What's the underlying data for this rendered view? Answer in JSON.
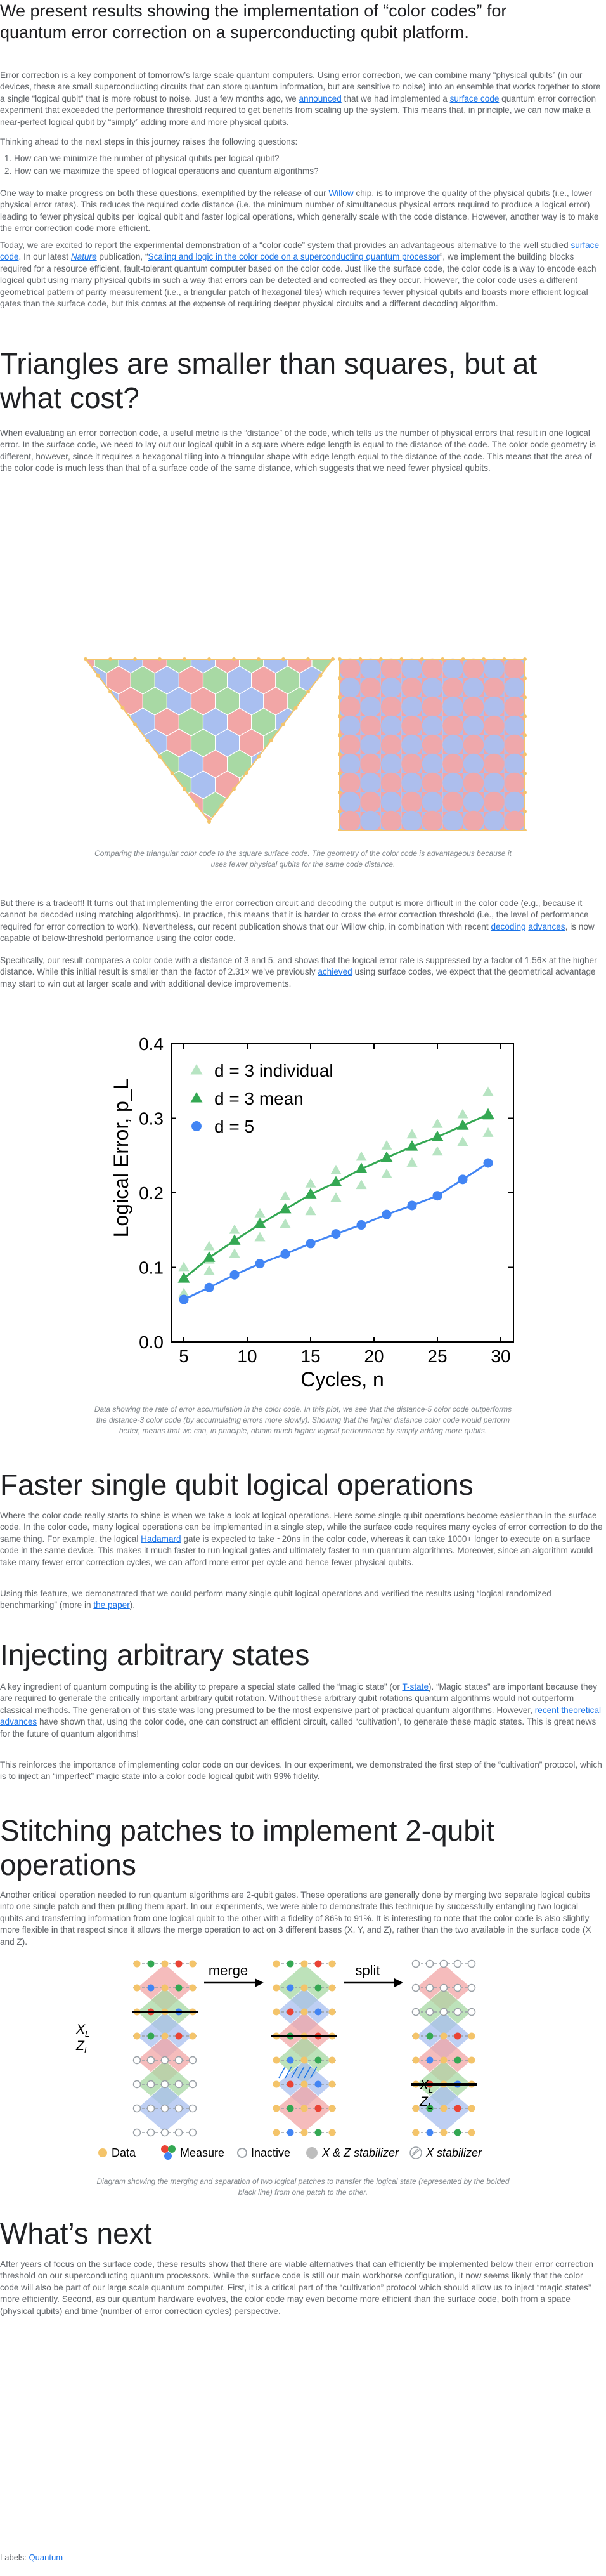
{
  "intro": {
    "lead": "We present results showing the implementation of “color codes” for quantum error correction on a superconducting qubit platform.",
    "p1": {
      "t1": "Error correction is a key component of tomorrow’s large scale quantum computers. Using error correction, we can combine many “physical qubits” (in our devices, these are small superconducting circuits that can store quantum information, but are sensitive to noise) into an ensemble that works together to store a single “logical qubit” that is more robust to noise. Just a few months ago, we ",
      "link1": "announced",
      "t2": " that we had implemented a ",
      "link2": "surface code",
      "t3": " quantum error correction experiment that exceeded the performance threshold required to get benefits from scaling up the system. This means that, in principle, we can now make a near-perfect logical qubit by “simply” adding more and more physical qubits."
    },
    "p2": "Thinking ahead to the next steps in this journey raises the following questions:",
    "questions": [
      "How can we minimize the number of physical qubits per logical qubit?",
      "How can we maximize the speed of logical operations and quantum algorithms?"
    ],
    "p3": {
      "t1": "One way to make progress on both these questions, exemplified by the release of our ",
      "link1": "Willow",
      "t2": " chip, is to improve the quality of the physical qubits (i.e., lower physical error rates). This reduces the required code distance (i.e. the minimum number of simultaneous physical errors required to produce a logical error) leading to fewer physical qubits per logical qubit and faster logical operations, which generally scale with the code distance. However, another way is to make the error correction code more efficient."
    },
    "p4": {
      "t1": "Today, we are excited to report the experimental demonstration of a “color code” system that provides an advantageous alternative to the well studied ",
      "link1": "surface code",
      "t2": ". In our latest ",
      "link2": "Nature",
      "t3": " publication, “",
      "link3": "Scaling and logic in the color code on a superconducting quantum processor",
      "t4": "”, we implement the building blocks required for a resource efficient, fault-tolerant quantum computer based on the color code. Just like the surface code, the color code is a way to encode each logical qubit using many physical qubits in such a way that errors can be detected and corrected as they occur. However, the color code uses a different geometrical pattern of parity measurement (i.e., a triangular patch of hexagonal tiles) which requires fewer physical qubits and boasts more efficient logical gates than the surface code, but this comes at the expense of requiring deeper physical circuits and a different decoding algorithm."
    }
  },
  "triangles": {
    "heading": "Triangles are smaller than squares, but at what cost?",
    "p1": "When evaluating an error correction code, a useful metric is the “distance” of the code, which tells us the number of physical errors that result in one logical error. In the surface code, we need to lay out our logical qubit in a square where edge length is equal to the distance of the code. The color code geometry is different, however, since it requires a hexagonal tiling into a triangular shape with edge length equal to the distance of the code. This means that the area of the color code is much less than that of a surface code of the same distance, which suggests that we need fewer physical qubits.",
    "figure_caption": "Comparing the triangular color code to the square surface code. The geometry of the color code is advantageous because it uses fewer physical qubits for the same code distance.",
    "p2": {
      "t1": "But there is a tradeoff! It turns out that implementing the error correction circuit and decoding the output is more difficult in the color code (e.g., because it cannot be decoded using matching algorithms). In practice, this means that it is harder to cross the error correction threshold (i.e., the level of performance required for error correction to work). Nevertheless, our recent publication shows that our Willow chip, in combination with recent ",
      "link1": "decoding",
      "t2": " ",
      "link2": "advances",
      "t3": ", is now capable of below-threshold performance using the color code."
    },
    "p3": {
      "t1": "Specifically, our result compares a color code with a distance of 3 and 5, and shows that the logical error rate is suppressed by a factor of 1.56× at the higher distance. While this initial result is smaller than the factor of 2.31× we’ve previously ",
      "link1": "achieved",
      "t2": " using surface codes, we expect that the geometrical advantage may start to win out at larger scale and with additional device improvements."
    },
    "chart_caption": "Data showing the rate of error accumulation in the color code. In this plot, we see that the distance-5 color code outperforms the distance-3 color code (by accumulating errors more slowly). Showing that the higher distance color code would perform better, means that we can, in principle, obtain much higher logical performance by simply adding more qubits."
  },
  "chart_data": {
    "type": "scatter",
    "xlabel": "Cycles, n",
    "ylabel": "Logical Error, p_L",
    "xlim": [
      4,
      31
    ],
    "ylim": [
      0,
      0.4
    ],
    "xticks": [
      "5",
      "10",
      "15",
      "20",
      "25",
      "30"
    ],
    "yticks": [
      "0.0",
      "0.1",
      "0.2",
      "0.3",
      "0.4"
    ],
    "legend_position": "top-left",
    "series": [
      {
        "name": "d = 3 individual",
        "color": "#b7e4c2",
        "marker": "triangle",
        "x": [
          5,
          5,
          5,
          7,
          7,
          7,
          9,
          9,
          9,
          11,
          11,
          11,
          13,
          13,
          13,
          15,
          15,
          15,
          17,
          17,
          17,
          19,
          19,
          19,
          21,
          21,
          21,
          23,
          23,
          23,
          25,
          25,
          25,
          27,
          27,
          27,
          29,
          29,
          29
        ],
        "y": [
          0.065,
          0.085,
          0.1,
          0.095,
          0.11,
          0.128,
          0.118,
          0.135,
          0.15,
          0.14,
          0.16,
          0.172,
          0.158,
          0.178,
          0.195,
          0.175,
          0.198,
          0.212,
          0.193,
          0.215,
          0.23,
          0.21,
          0.232,
          0.248,
          0.225,
          0.248,
          0.263,
          0.24,
          0.262,
          0.278,
          0.255,
          0.276,
          0.292,
          0.268,
          0.29,
          0.305,
          0.28,
          0.303,
          0.335
        ]
      },
      {
        "name": "d = 3 mean",
        "color": "#34a853",
        "marker": "triangle",
        "x": [
          5,
          7,
          9,
          11,
          13,
          15,
          17,
          19,
          21,
          23,
          25,
          27,
          29
        ],
        "y": [
          0.085,
          0.113,
          0.136,
          0.158,
          0.178,
          0.198,
          0.214,
          0.232,
          0.247,
          0.262,
          0.275,
          0.29,
          0.305
        ]
      },
      {
        "name": "d = 5",
        "color": "#4285f4",
        "marker": "circle",
        "x": [
          5,
          7,
          9,
          11,
          13,
          15,
          17,
          19,
          21,
          23,
          25,
          27,
          29
        ],
        "y": [
          0.057,
          0.073,
          0.09,
          0.105,
          0.118,
          0.132,
          0.145,
          0.157,
          0.171,
          0.183,
          0.196,
          0.218,
          0.24
        ]
      }
    ]
  },
  "faster": {
    "heading": "Faster single qubit logical operations",
    "p1": {
      "t1": "Where the color code really starts to shine is when we take a look at logical operations. Here some single qubit operations become easier than in the surface code. In the color code, many logical operations can be implemented in a single step, while the surface code requires many cycles of error correction to do the same thing. For example, the logical ",
      "link1": "Hadamard",
      "t2": " gate is expected to take ~20ns in the color code, whereas it can take 1000+ longer to execute on a surface code in the same device. This makes it much faster to run logical gates and ultimately faster to run quantum algorithms. Moreover, since an algorithm would take many fewer error correction cycles, we can afford more error per cycle and hence fewer physical qubits."
    },
    "p2": {
      "t1": "Using this feature, we demonstrated that we could perform many single qubit logical operations and verified the results using “logical randomized benchmarking” (more in ",
      "link1": "the paper",
      "t2": ")."
    }
  },
  "injecting": {
    "heading": "Injecting arbitrary states",
    "p1": {
      "t1": "A key ingredient of quantum computing is the ability to prepare a special state called the “magic state” (or ",
      "link1": "T-state",
      "t2": "). “Magic states” are important because they are required to generate the critically important arbitrary qubit rotation. Without these arbitrary qubit rotations quantum algorithms would not outperform classical methods. The generation of this state was long presumed to be the most expensive part of practical quantum algorithms. However, ",
      "link2": "recent theoretical advances",
      "t3": " have shown that, using the color code, one can construct an efficient circuit, called “cultivation”, to generate these magic states. This is great news for the future of quantum algorithms!"
    },
    "p2": "This reinforces the importance of implementing color code on our devices. In our experiment, we demonstrated the first step of the “cultivation” protocol, which is to inject an “imperfect” magic state into a color code logical qubit with 99% fidelity."
  },
  "stitching": {
    "heading": "Stitching patches to implement 2-qubit operations",
    "p1": "Another critical operation needed to run quantum algorithms are 2-qubit gates. These operations are generally done by merging two separate logical qubits into one single patch and then pulling them apart. In our experiments, we were able to demonstrate this technique by successfully entangling two logical qubits and transferring information from one logical qubit to the other with a fidelity of 86% to 91%. It is interesting to note that the color code is also slightly more flexible in that respect since it allows the merge operation to act on 3 different bases (X, Y, and Z), rather than the two available in the surface code (X and Z).",
    "diagram": {
      "merge_label": "merge",
      "split_label": "split",
      "xl_label": "X",
      "zl_label": "Z",
      "sub_label": "L",
      "legend": [
        "Data",
        "Measure",
        "Inactive",
        "X & Z stabilizer",
        "X stabilizer"
      ]
    },
    "caption": "Diagram showing the merging and separation of two logical patches to transfer the logical state (represented by the bolded black line) from one patch to the other."
  },
  "next": {
    "heading": "What’s next",
    "p1": "After years of focus on the surface code, these results show that there are viable alternatives that can efficiently be implemented below their error correction threshold on our superconducting quantum processors. While the surface code is still our main workhorse configuration, it now seems likely that the color code will also be part of our large scale quantum computer. First, it is a critical part of the “cultivation” protocol which should allow us to inject “magic states” more efficiently. Second, as our quantum hardware evolves, the color code may even become more efficient than the surface code, both from a space (physical qubits) and time (number of error correction cycles) perspective."
  },
  "footer": {
    "labels_prefix": "Labels: ",
    "label": "Quantum"
  },
  "colors": {
    "red": "#f2a6a6",
    "green": "#a8d9a4",
    "blue": "#a9bff0",
    "data_qubit": "#f4c46a",
    "d5": "#4285f4",
    "d3mean": "#34a853",
    "d3ind": "#b7e4c2"
  }
}
